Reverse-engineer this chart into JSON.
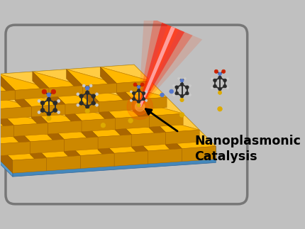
{
  "bg_color": "#c0c0c0",
  "border_color": "#888888",
  "gold_top": "#FFB800",
  "gold_top_alt": "#FFCC44",
  "gold_side": "#CC8800",
  "gold_shadow": "#AA6600",
  "substrate_top": "#7BBDE4",
  "substrate_side": "#5599CC",
  "substrate_front": "#4488BB",
  "atom_carbon": "#2a2a2a",
  "atom_oxygen": "#CC2200",
  "atom_nitrogen": "#5577CC",
  "atom_hydrogen": "#cccccc",
  "atom_sulfur": "#DDAA00",
  "bond_color": "#333333"
}
